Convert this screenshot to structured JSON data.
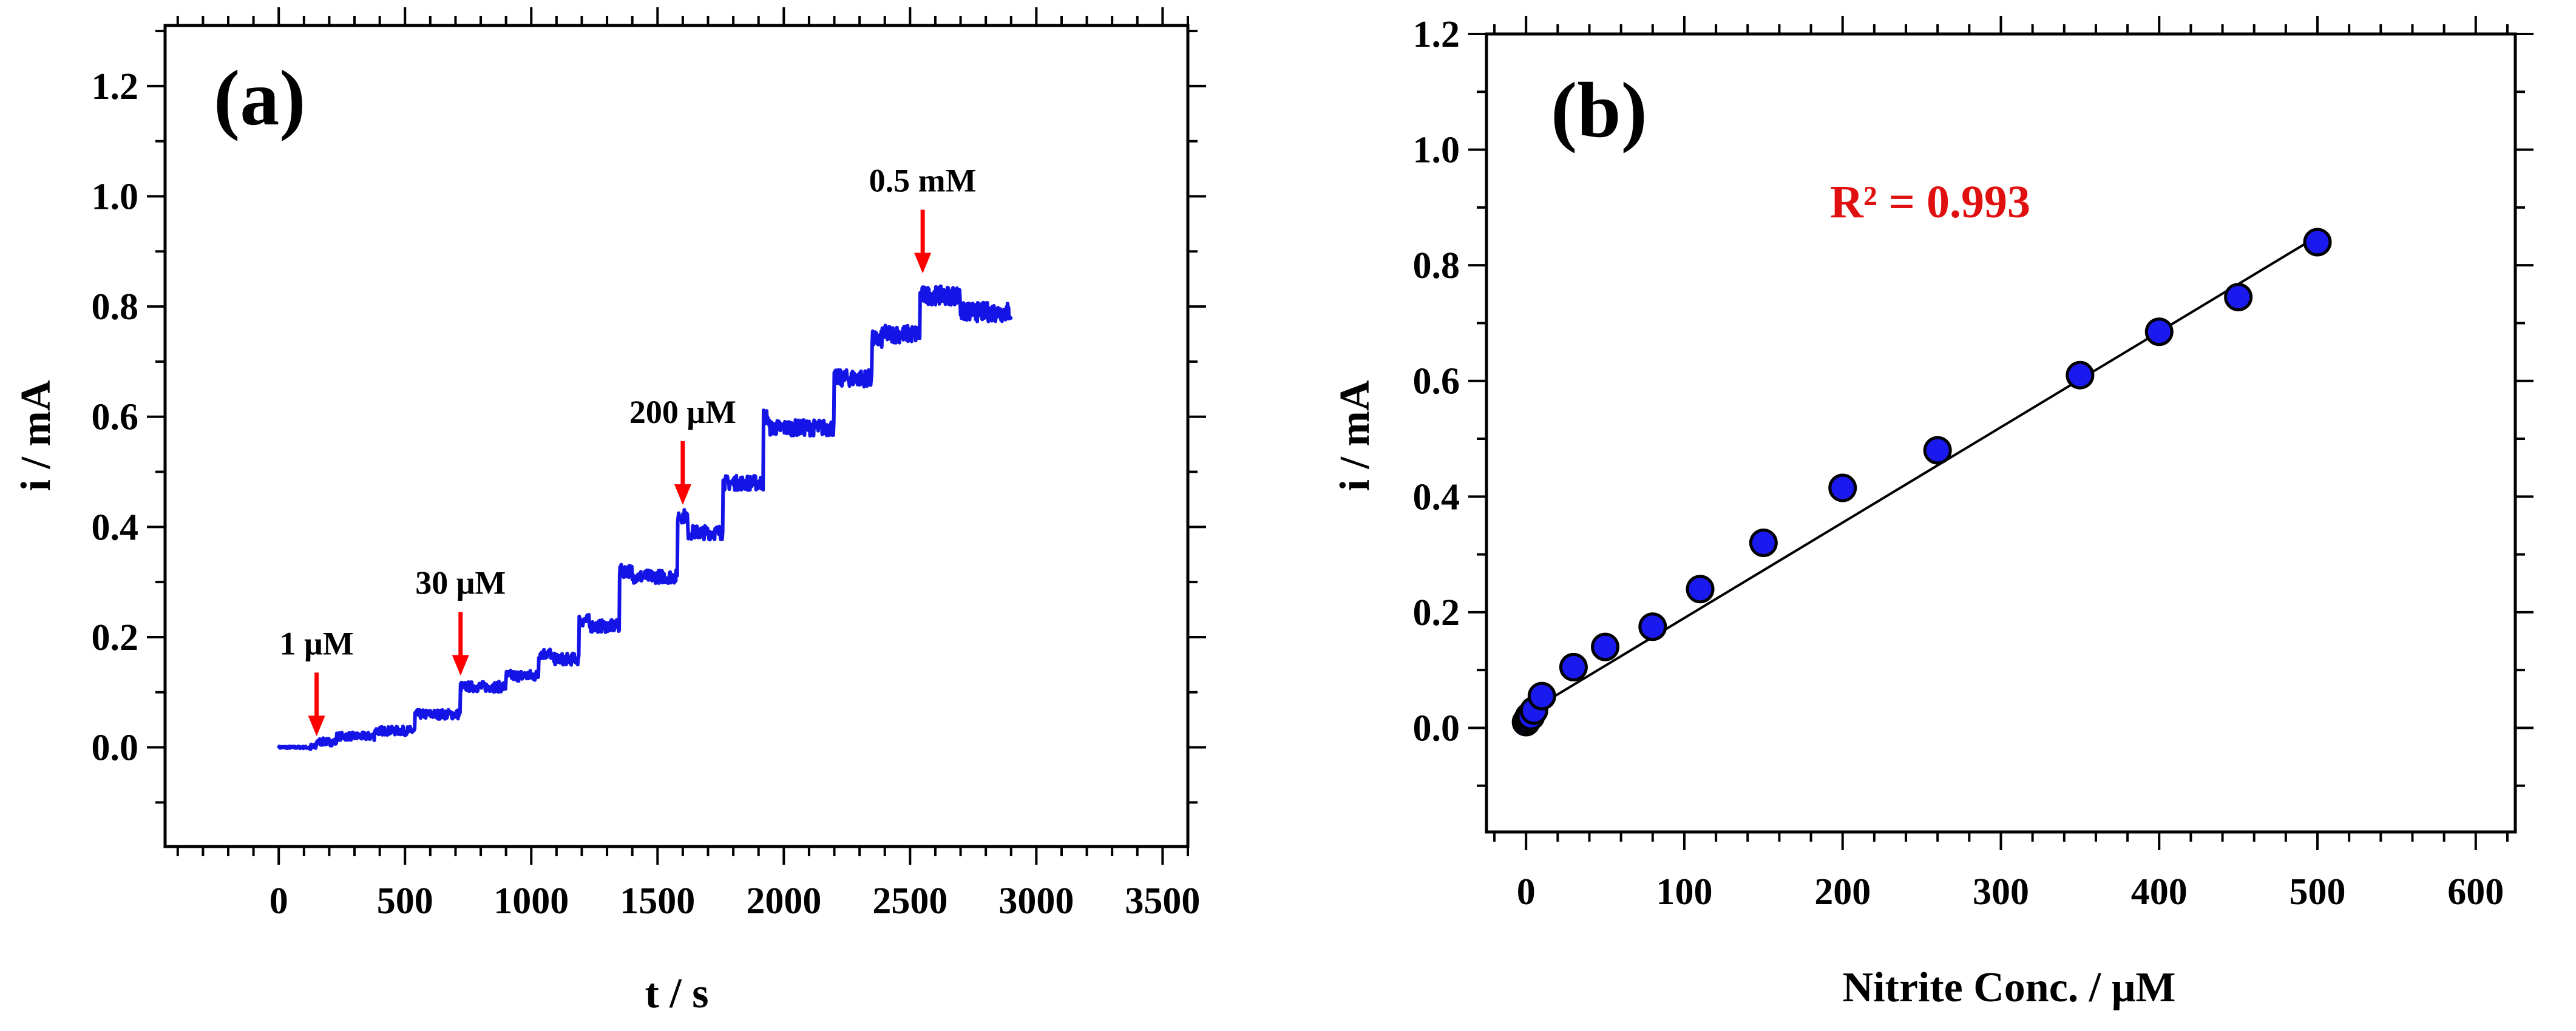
{
  "colors": {
    "trace": "#1414e6",
    "arrow": "#ff0000",
    "marker_fill": "#1a1aee",
    "marker_edge": "#000000",
    "fit_line": "#000000",
    "r2_text": "#e01010"
  },
  "chart_data": [
    {
      "type": "line",
      "panel_label": "(a)",
      "xlabel": "t / s",
      "ylabel": "i / mA",
      "xlim": [
        -450,
        3600
      ],
      "ylim": [
        -0.18,
        1.31
      ],
      "xticks": [
        0,
        500,
        1000,
        1500,
        2000,
        2500,
        3000,
        3500
      ],
      "xtick_labels": [
        "0",
        "500",
        "1000",
        "1500",
        "2000",
        "2500",
        "3000",
        "3500"
      ],
      "yticks": [
        0.0,
        0.2,
        0.4,
        0.6,
        0.8,
        1.0,
        1.2
      ],
      "ytick_labels": [
        "0.0",
        "0.2",
        "0.4",
        "0.6",
        "0.8",
        "1.0",
        "1.2"
      ],
      "grid": false,
      "series": [
        {
          "name": "amperometric response",
          "step_times": [
            0,
            150,
            230,
            380,
            540,
            720,
            820,
            900,
            1030,
            1080,
            1190,
            1230,
            1350,
            1400,
            1580,
            1620,
            1760,
            1920,
            1940,
            2200,
            2210,
            2350,
            2390,
            2540,
            2700,
            2900
          ],
          "step_levels": [
            0.0,
            0.01,
            0.02,
            0.03,
            0.06,
            0.11,
            0.11,
            0.13,
            0.17,
            0.16,
            0.23,
            0.22,
            0.32,
            0.31,
            0.42,
            0.39,
            0.48,
            0.6,
            0.58,
            0.67,
            0.67,
            0.74,
            0.75,
            0.82,
            0.79,
            0.78
          ]
        }
      ],
      "annotations": [
        {
          "text": "1 μM",
          "x": 150,
          "y": 0.02
        },
        {
          "text": "30 μM",
          "x": 720,
          "y": 0.13
        },
        {
          "text": "200 μM",
          "x": 1600,
          "y": 0.44
        },
        {
          "text": "0.5 mM",
          "x": 2550,
          "y": 0.86
        }
      ]
    },
    {
      "type": "scatter",
      "panel_label": "(b)",
      "xlabel": "Nitrite Conc. / μM",
      "ylabel": "i / mA",
      "xlim": [
        -25,
        625
      ],
      "ylim": [
        -0.18,
        1.2
      ],
      "xticks": [
        0,
        100,
        200,
        300,
        400,
        500,
        600
      ],
      "xtick_labels": [
        "0",
        "100",
        "200",
        "300",
        "400",
        "500",
        "600"
      ],
      "yticks": [
        0.0,
        0.2,
        0.4,
        0.6,
        0.8,
        1.0,
        1.2
      ],
      "ytick_labels": [
        "0.0",
        "0.2",
        "0.4",
        "0.6",
        "0.8",
        "1.0",
        "1.2"
      ],
      "grid": false,
      "series": [
        {
          "name": "calibration points",
          "x": [
            0,
            1,
            2,
            3,
            5,
            10,
            30,
            50,
            80,
            110,
            150,
            200,
            260,
            350,
            400,
            450,
            500
          ],
          "y": [
            0.01,
            0.015,
            0.02,
            0.02,
            0.03,
            0.055,
            0.105,
            0.14,
            0.175,
            0.24,
            0.32,
            0.415,
            0.48,
            0.61,
            0.685,
            0.745,
            0.84
          ]
        }
      ],
      "fit_line": {
        "x": [
          0,
          500
        ],
        "y": [
          0.025,
          0.85
        ]
      },
      "r2_text": "R²   = 0.993"
    }
  ]
}
